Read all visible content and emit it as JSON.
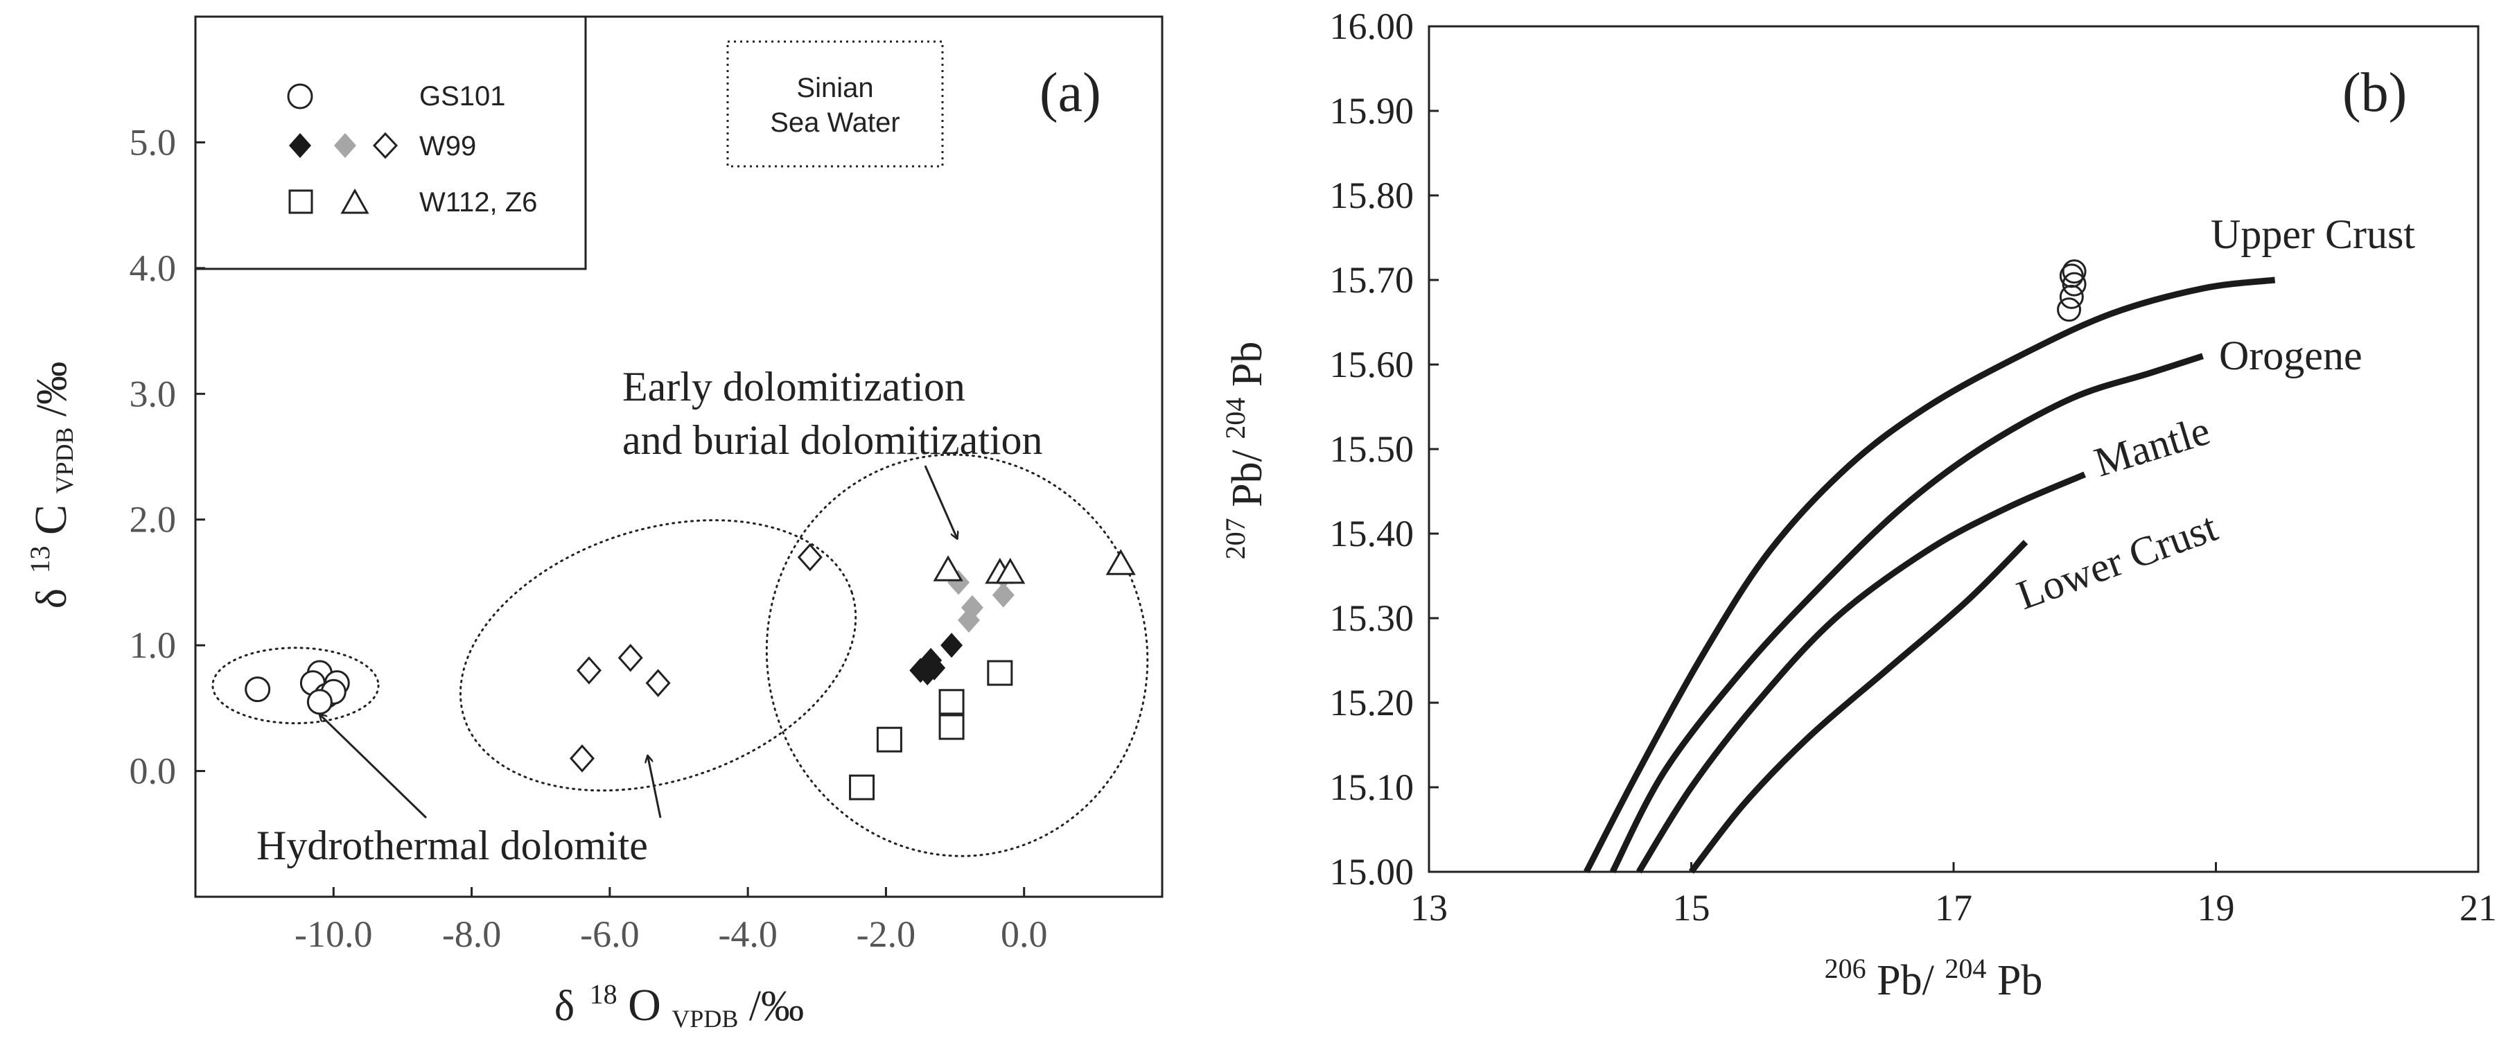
{
  "chart_data": [
    {
      "panel": "a",
      "type": "scatter",
      "panel_label": "(a)",
      "xlabel": {
        "prefix": "δ",
        "sup": "18",
        "main": "O",
        "sub": "VPDB",
        "suffix": "/‰"
      },
      "ylabel": {
        "prefix": "δ",
        "sup": "13",
        "main": "C",
        "sub": "VPDB",
        "suffix": "/‰"
      },
      "xlim": [
        -12.0,
        2.0
      ],
      "ylim": [
        -1.0,
        6.0
      ],
      "xticks": [
        -10.0,
        -8.0,
        -6.0,
        -4.0,
        -2.0,
        0.0
      ],
      "xtick_labels": [
        "-10.0",
        "-8.0",
        "-6.0",
        "-4.0",
        "-2.0",
        "0.0"
      ],
      "yticks": [
        0.0,
        1.0,
        2.0,
        3.0,
        4.0,
        5.0
      ],
      "ytick_labels": [
        "0.0",
        "1.0",
        "2.0",
        "3.0",
        "4.0",
        "5.0"
      ],
      "legend": [
        {
          "label": "GS101",
          "markers": [
            "open-circle"
          ]
        },
        {
          "label": "W99",
          "markers": [
            "filled-diamond-black",
            "filled-diamond-gray",
            "open-diamond"
          ]
        },
        {
          "label": "W112, Z6",
          "markers": [
            "open-square",
            "open-triangle"
          ]
        }
      ],
      "series": [
        {
          "name": "GS101",
          "marker": "open-circle",
          "points": [
            [
              -11.1,
              0.65
            ],
            [
              -10.2,
              0.78
            ],
            [
              -10.3,
              0.7
            ],
            [
              -10.1,
              0.6
            ],
            [
              -9.95,
              0.7
            ],
            [
              -10.0,
              0.63
            ],
            [
              -10.2,
              0.55
            ]
          ]
        },
        {
          "name": "W99 (early)",
          "marker": "filled-diamond-black",
          "points": [
            [
              -1.5,
              0.8
            ],
            [
              -1.35,
              0.88
            ],
            [
              -1.4,
              0.78
            ],
            [
              -1.3,
              0.82
            ],
            [
              -1.05,
              1.0
            ]
          ]
        },
        {
          "name": "W99 (burial)",
          "marker": "filled-diamond-gray",
          "points": [
            [
              -0.95,
              1.5
            ],
            [
              -0.75,
              1.3
            ],
            [
              -0.8,
              1.2
            ],
            [
              -0.3,
              1.4
            ],
            [
              -0.3,
              1.55
            ]
          ]
        },
        {
          "name": "W99 (hydrothermal)",
          "marker": "open-diamond",
          "points": [
            [
              -3.1,
              1.7
            ],
            [
              -6.3,
              0.8
            ],
            [
              -5.7,
              0.9
            ],
            [
              -5.3,
              0.7
            ],
            [
              -6.4,
              0.1
            ]
          ]
        },
        {
          "name": "W112, Z6 (squares)",
          "marker": "open-square",
          "points": [
            [
              -1.05,
              0.55
            ],
            [
              -1.05,
              0.35
            ],
            [
              -0.35,
              0.78
            ],
            [
              -1.95,
              0.25
            ],
            [
              -2.35,
              -0.13
            ]
          ]
        },
        {
          "name": "W112, Z6 (triangles)",
          "marker": "open-triangle",
          "points": [
            [
              -1.1,
              1.6
            ],
            [
              -0.35,
              1.58
            ],
            [
              -0.2,
              1.58
            ],
            [
              1.4,
              1.65
            ]
          ]
        }
      ],
      "regions": [
        {
          "name": "GS101 cluster",
          "cx": -10.55,
          "cy": 0.68,
          "rx": 1.2,
          "ry": 0.3,
          "angle": 0
        },
        {
          "name": "Hydrothermal field",
          "cx": -5.3,
          "cy": 0.92,
          "rx": 2.95,
          "ry": 1.0,
          "angle": 18
        },
        {
          "name": "Early/burial field",
          "cx": -0.97,
          "cy": 0.92,
          "rx": 2.75,
          "ry": 1.6,
          "angle": 12
        }
      ],
      "sea_water_box": {
        "label_lines": [
          "Sinian",
          "Sea Water"
        ],
        "x": [
          -4.6,
          -1.0
        ],
        "y": [
          4.95,
          5.95
        ]
      },
      "annotations": [
        {
          "text_lines": [
            "Early dolomitization",
            "and burial dolomitization"
          ],
          "arrow_to": [
            -0.97,
            1.85
          ]
        },
        {
          "text_lines": [
            "Hydrothermal dolomite"
          ],
          "arrow_to": [
            -5.45,
            0.12
          ]
        },
        {
          "arrow_to": [
            -10.2,
            0.45
          ]
        }
      ]
    },
    {
      "panel": "b",
      "type": "line",
      "panel_label": "(b)",
      "xlabel": {
        "sup1": "206",
        "main1": "Pb/",
        "sup2": "204",
        "main2": "Pb"
      },
      "ylabel": {
        "sup1": "207",
        "main1": "Pb/",
        "sup2": "204",
        "main2": "Pb"
      },
      "xlim": [
        13,
        21
      ],
      "ylim": [
        15.0,
        16.0
      ],
      "xticks": [
        13,
        15,
        17,
        19,
        21
      ],
      "xtick_labels": [
        "13",
        "15",
        "17",
        "19",
        "21"
      ],
      "yticks": [
        15.0,
        15.1,
        15.2,
        15.3,
        15.4,
        15.5,
        15.6,
        15.7,
        15.8,
        15.9,
        16.0
      ],
      "ytick_labels": [
        "15.00",
        "15.10",
        "15.20",
        "15.30",
        "15.40",
        "15.50",
        "15.60",
        "15.70",
        "15.80",
        "15.90",
        "16.00"
      ],
      "series": [
        {
          "name": "Upper Crust",
          "label_rotation": 0,
          "points": [
            [
              14.2,
              15.0
            ],
            [
              14.6,
              15.12
            ],
            [
              15.1,
              15.26
            ],
            [
              15.6,
              15.38
            ],
            [
              16.2,
              15.48
            ],
            [
              16.8,
              15.55
            ],
            [
              17.5,
              15.61
            ],
            [
              18.2,
              15.66
            ],
            [
              18.9,
              15.69
            ],
            [
              19.45,
              15.7
            ]
          ]
        },
        {
          "name": "Orogene",
          "label_rotation": 0,
          "points": [
            [
              14.4,
              15.0
            ],
            [
              14.8,
              15.12
            ],
            [
              15.4,
              15.24
            ],
            [
              16.0,
              15.34
            ],
            [
              16.6,
              15.43
            ],
            [
              17.2,
              15.5
            ],
            [
              17.9,
              15.56
            ],
            [
              18.5,
              15.59
            ],
            [
              18.9,
              15.61
            ]
          ]
        },
        {
          "name": "Mantle",
          "label_rotation": -17,
          "points": [
            [
              14.6,
              15.0
            ],
            [
              15.0,
              15.1
            ],
            [
              15.5,
              15.2
            ],
            [
              16.1,
              15.3
            ],
            [
              16.8,
              15.38
            ],
            [
              17.4,
              15.43
            ],
            [
              18.0,
              15.47
            ]
          ]
        },
        {
          "name": "Lower Crust",
          "label_rotation": -20,
          "points": [
            [
              15.0,
              15.0
            ],
            [
              15.4,
              15.08
            ],
            [
              15.9,
              15.16
            ],
            [
              16.5,
              15.24
            ],
            [
              17.1,
              15.32
            ],
            [
              17.55,
              15.39
            ]
          ]
        }
      ],
      "samples": {
        "name": "GS101",
        "marker": "open-circle",
        "points": [
          [
            17.88,
            15.665
          ],
          [
            17.9,
            15.68
          ],
          [
            17.92,
            15.695
          ],
          [
            17.9,
            15.705
          ],
          [
            17.92,
            15.71
          ]
        ]
      }
    }
  ]
}
